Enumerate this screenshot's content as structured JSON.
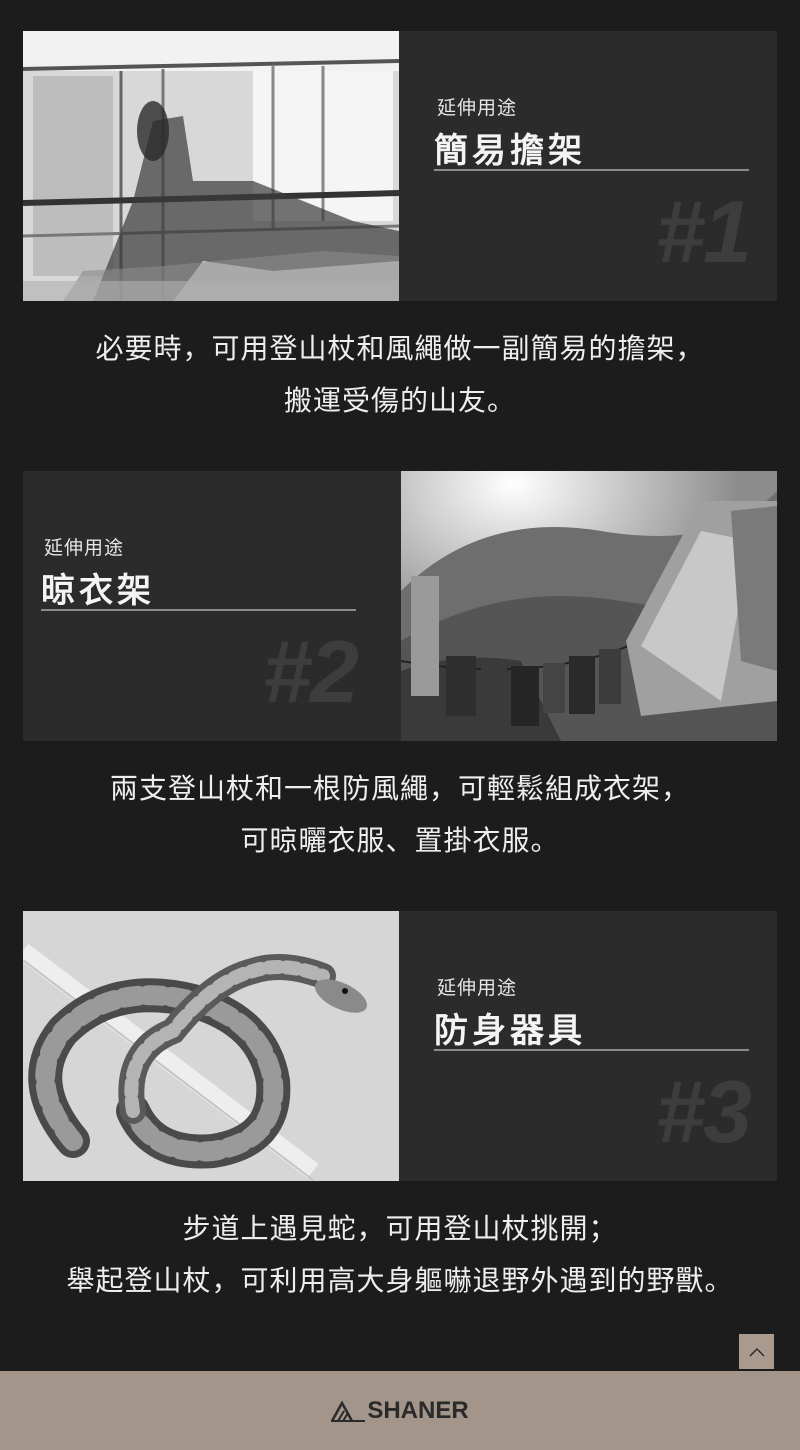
{
  "sections": [
    {
      "kicker": "延伸用途",
      "title": "簡易擔架",
      "number": "#1",
      "description": [
        "必要時，可用登山杖和風繩做一副簡易的擔架，",
        "搬運受傷的山友。"
      ]
    },
    {
      "kicker": "延伸用途",
      "title": "晾衣架",
      "number": "#2",
      "description": [
        "兩支登山杖和一根防風繩，可輕鬆組成衣架，",
        "可晾曬衣服、置掛衣服。"
      ]
    },
    {
      "kicker": "延伸用途",
      "title": "防身器具",
      "number": "#3",
      "description": [
        "步道上遇見蛇，可用登山杖挑開；",
        "舉起登山杖，可利用高大身軀嚇退野外遇到的野獸。"
      ]
    }
  ],
  "back_to_top_icon": "chevron-up-icon",
  "footer": {
    "brand": "SHANER",
    "logo_icon": "mountain-logo-icon"
  },
  "colors": {
    "background": "#1c1c1c",
    "panel": "#2b2b2b",
    "footer": "#a3958a",
    "top_button": "#a99a8d"
  }
}
